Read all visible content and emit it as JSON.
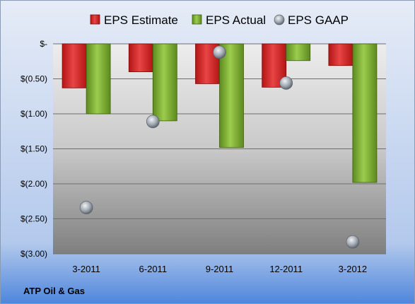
{
  "chart_data": {
    "type": "bar",
    "categories": [
      "3-2011",
      "6-2011",
      "9-2011",
      "12-2011",
      "3-2012"
    ],
    "series": [
      {
        "name": "EPS Estimate",
        "kind": "bar",
        "color": "#d42020",
        "values": [
          -0.63,
          -0.4,
          -0.57,
          -0.62,
          -0.31
        ]
      },
      {
        "name": "EPS Actual",
        "kind": "bar",
        "color": "#80b830",
        "values": [
          -1.0,
          -1.1,
          -1.48,
          -0.24,
          -1.98
        ]
      },
      {
        "name": "EPS GAAP",
        "kind": "marker",
        "color": "#9aa3ad",
        "values": [
          -2.34,
          -1.11,
          -0.12,
          -0.56,
          -2.83
        ]
      }
    ],
    "y_ticks": [
      0,
      -0.5,
      -1.0,
      -1.5,
      -2.0,
      -2.5,
      -3.0
    ],
    "y_tick_labels": [
      "$-",
      "$(0.50)",
      "$(1.00)",
      "$(1.50)",
      "$(2.00)",
      "$(2.50)",
      "$(3.00)"
    ],
    "ylim": [
      -3.0,
      0
    ],
    "grid": true,
    "legend_position": "top",
    "company": "ATP Oil & Gas"
  }
}
